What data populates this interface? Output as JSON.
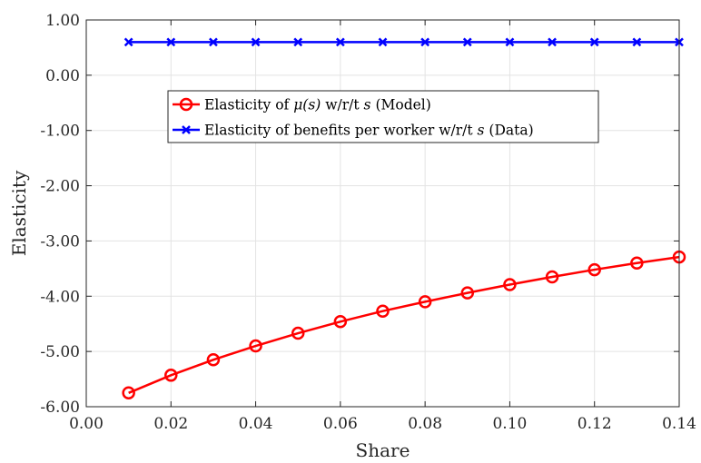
{
  "chart_data": {
    "type": "line",
    "xlabel": "Share",
    "ylabel": "Elasticity",
    "xlim": [
      0.0,
      0.14
    ],
    "ylim": [
      -6.0,
      1.0
    ],
    "x_ticks": [
      0.0,
      0.02,
      0.04,
      0.06,
      0.08,
      0.1,
      0.12,
      0.14
    ],
    "x_tick_labels": [
      "0.00",
      "0.02",
      "0.04",
      "0.06",
      "0.08",
      "0.10",
      "0.12",
      "0.14"
    ],
    "y_ticks": [
      1.0,
      0.0,
      -1.0,
      -2.0,
      -3.0,
      -4.0,
      -5.0,
      -6.0
    ],
    "y_tick_labels": [
      "1.00",
      "0.00",
      "-1.00",
      "-2.00",
      "-3.00",
      "-4.00",
      "-5.00",
      "-6.00"
    ],
    "grid": true,
    "legend_position": "upper-center",
    "x": [
      0.01,
      0.02,
      0.03,
      0.04,
      0.05,
      0.06,
      0.07,
      0.08,
      0.09,
      0.1,
      0.11,
      0.12,
      0.13,
      0.14
    ],
    "series": [
      {
        "name": "Elasticity of μ(s) w/r/t s (Model)",
        "legend_parts": [
          "Elasticity of ",
          "μ(s)",
          " w/r/t ",
          "s",
          " (Model)"
        ],
        "color": "#ff0000",
        "marker": "circle",
        "values": [
          -5.75,
          -5.43,
          -5.15,
          -4.9,
          -4.67,
          -4.46,
          -4.27,
          -4.1,
          -3.94,
          -3.79,
          -3.65,
          -3.52,
          -3.4,
          -3.29
        ]
      },
      {
        "name": "Elasticity of benefits per worker w/r/t s (Data)",
        "legend_parts": [
          "Elasticity of benefits per worker w/r/t ",
          "s",
          " (Data)"
        ],
        "color": "#0000ff",
        "marker": "x",
        "values": [
          0.6,
          0.6,
          0.6,
          0.6,
          0.6,
          0.6,
          0.6,
          0.6,
          0.6,
          0.6,
          0.6,
          0.6,
          0.6,
          0.6
        ]
      }
    ]
  }
}
